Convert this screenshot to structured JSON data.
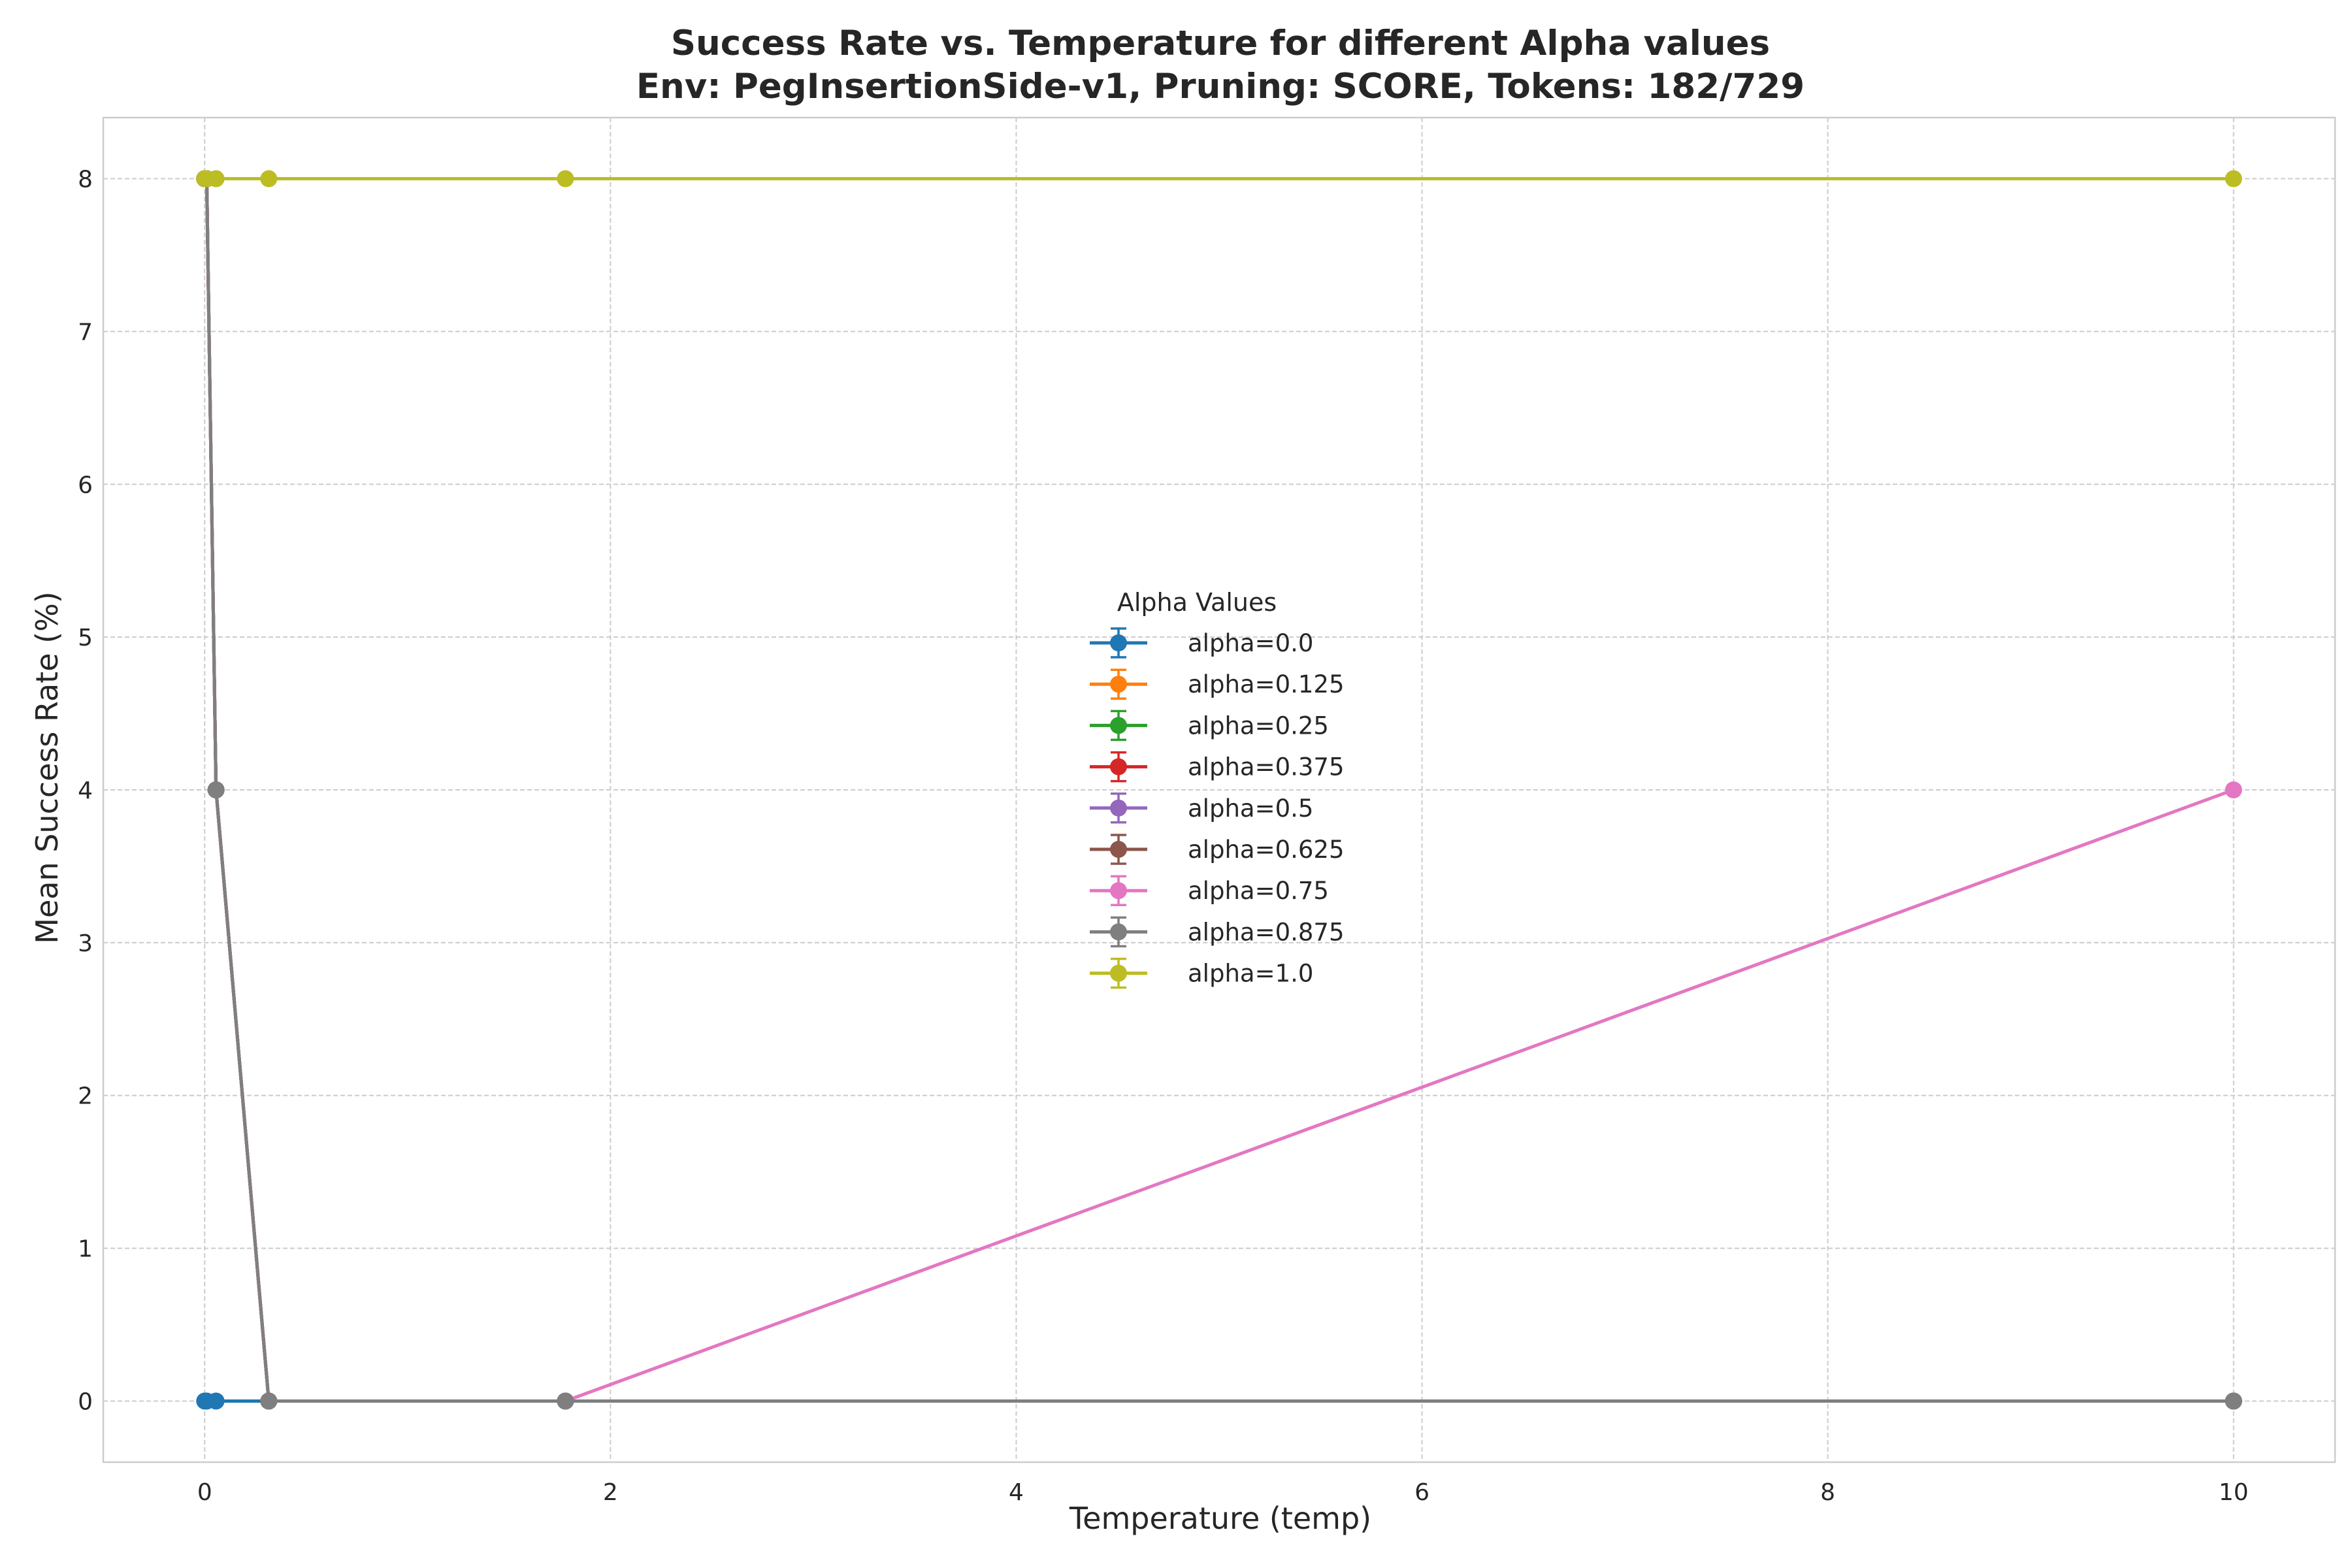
{
  "chart_data": {
    "type": "line",
    "title": "Success Rate vs. Temperature for different Alpha values",
    "subtitle": "Env: PegInsertionSide-v1, Pruning: SCORE, Tokens: 182/729",
    "xlabel": "Temperature (temp)",
    "ylabel": "Mean Success Rate (%)",
    "xlim": [
      -0.5,
      10.5
    ],
    "ylim": [
      -0.4,
      8.4
    ],
    "xticks": [
      0,
      2,
      4,
      6,
      8,
      10
    ],
    "yticks": [
      0,
      1,
      2,
      3,
      4,
      5,
      6,
      7,
      8
    ],
    "grid": true,
    "legend_title": "Alpha Values",
    "legend_placement": "center",
    "series": [
      {
        "name": "alpha=0.0",
        "color": "#1f77b4",
        "x": [
          0.0,
          0.01,
          0.056,
          0.316,
          1.778,
          10.0
        ],
        "y": [
          0,
          0,
          0,
          0,
          0,
          0
        ]
      },
      {
        "name": "alpha=0.125",
        "color": "#ff7f0e",
        "x": [
          0.0,
          0.01,
          0.056,
          0.316,
          1.778,
          10.0
        ],
        "y": [
          8,
          8,
          4,
          0,
          0,
          0
        ]
      },
      {
        "name": "alpha=0.25",
        "color": "#2ca02c",
        "x": [
          0.0,
          0.01,
          0.056,
          0.316,
          1.778,
          10.0
        ],
        "y": [
          8,
          8,
          4,
          0,
          0,
          0
        ]
      },
      {
        "name": "alpha=0.375",
        "color": "#d62728",
        "x": [
          0.0,
          0.01,
          0.056,
          0.316,
          1.778,
          10.0
        ],
        "y": [
          8,
          8,
          4,
          0,
          0,
          0
        ]
      },
      {
        "name": "alpha=0.5",
        "color": "#9467bd",
        "x": [
          0.0,
          0.01,
          0.056,
          0.316,
          1.778,
          10.0
        ],
        "y": [
          8,
          8,
          4,
          0,
          0,
          0
        ]
      },
      {
        "name": "alpha=0.625",
        "color": "#8c564b",
        "x": [
          0.0,
          0.01,
          0.056,
          0.316,
          1.778,
          10.0
        ],
        "y": [
          8,
          8,
          4,
          0,
          0,
          0
        ]
      },
      {
        "name": "alpha=0.75",
        "color": "#e377c2",
        "x": [
          0.0,
          0.01,
          0.056,
          0.316,
          1.778,
          10.0
        ],
        "y": [
          8,
          8,
          4,
          0,
          0,
          4
        ]
      },
      {
        "name": "alpha=0.875",
        "color": "#7f7f7f",
        "x": [
          0.0,
          0.01,
          0.056,
          0.316,
          1.778,
          10.0
        ],
        "y": [
          8,
          8,
          4,
          0,
          0,
          0
        ]
      },
      {
        "name": "alpha=1.0",
        "color": "#bcbd22",
        "x": [
          0.0,
          0.01,
          0.056,
          0.316,
          1.778,
          10.0
        ],
        "y": [
          8,
          8,
          8,
          8,
          8,
          8
        ]
      }
    ]
  }
}
